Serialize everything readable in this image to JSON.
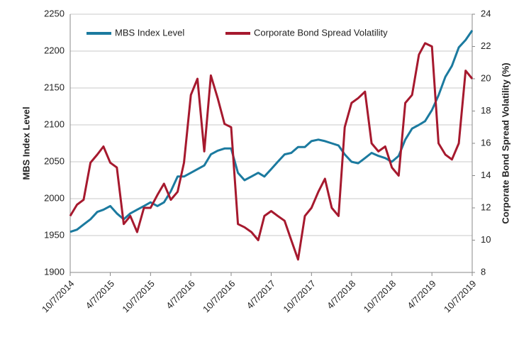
{
  "chart_data": {
    "type": "line",
    "y_label": "MBS Index Level",
    "y2_label": "Corporate Bond Spread Volatility (%)",
    "x": [
      "2014-10-07",
      "2014-11-07",
      "2014-12-07",
      "2015-01-07",
      "2015-02-07",
      "2015-03-07",
      "2015-04-07",
      "2015-05-07",
      "2015-06-07",
      "2015-07-07",
      "2015-08-07",
      "2015-09-07",
      "2015-10-07",
      "2015-11-07",
      "2015-12-07",
      "2016-01-07",
      "2016-02-07",
      "2016-03-07",
      "2016-04-07",
      "2016-05-07",
      "2016-06-07",
      "2016-07-07",
      "2016-08-07",
      "2016-09-07",
      "2016-10-07",
      "2016-11-07",
      "2016-12-07",
      "2017-01-07",
      "2017-02-07",
      "2017-03-07",
      "2017-04-07",
      "2017-05-07",
      "2017-06-07",
      "2017-07-07",
      "2017-08-07",
      "2017-09-07",
      "2017-10-07",
      "2017-11-07",
      "2017-12-07",
      "2018-01-07",
      "2018-02-07",
      "2018-03-07",
      "2018-04-07",
      "2018-05-07",
      "2018-06-07",
      "2018-07-07",
      "2018-08-07",
      "2018-09-07",
      "2018-10-07",
      "2018-11-07",
      "2018-12-07",
      "2019-01-07",
      "2019-02-07",
      "2019-03-07",
      "2019-04-07",
      "2019-05-07",
      "2019-06-07",
      "2019-07-07",
      "2019-08-07",
      "2019-09-07",
      "2019-10-07"
    ],
    "series": [
      {
        "name": "MBS Index Level",
        "color": "#1b7a9f",
        "axis": "y",
        "values": [
          1955,
          1958,
          1965,
          1972,
          1982,
          1985,
          1990,
          1980,
          1972,
          1980,
          1985,
          1990,
          1995,
          1990,
          1995,
          2010,
          2030,
          2030,
          2035,
          2040,
          2045,
          2060,
          2065,
          2068,
          2068,
          2035,
          2025,
          2030,
          2035,
          2030,
          2040,
          2050,
          2060,
          2062,
          2070,
          2070,
          2078,
          2080,
          2078,
          2075,
          2072,
          2060,
          2050,
          2048,
          2055,
          2062,
          2058,
          2055,
          2050,
          2058,
          2080,
          2095,
          2100,
          2105,
          2120,
          2140,
          2165,
          2180,
          2205,
          2215,
          2228
        ]
      },
      {
        "name": "Corporate Bond Spread Volatility",
        "color": "#a6192e",
        "axis": "y2",
        "values": [
          11.5,
          12.2,
          12.5,
          14.8,
          15.3,
          15.8,
          14.8,
          14.5,
          11.0,
          11.5,
          10.5,
          12.0,
          12.0,
          12.8,
          13.5,
          12.5,
          13.0,
          14.8,
          19.0,
          20.0,
          15.5,
          20.2,
          18.8,
          17.2,
          17.0,
          11.0,
          10.8,
          10.5,
          10.0,
          11.5,
          11.8,
          11.5,
          11.2,
          10.0,
          8.8,
          11.5,
          12.0,
          13.0,
          13.8,
          12.0,
          11.5,
          17.0,
          18.5,
          18.8,
          19.2,
          16.0,
          15.5,
          15.8,
          14.5,
          14.0,
          18.5,
          19.0,
          21.5,
          22.2,
          22.0,
          16.0,
          15.3,
          15.0,
          16.0,
          20.5,
          20.0
        ]
      }
    ],
    "xlim": [
      "2014-10-07",
      "2019-10-07"
    ],
    "xticks": [
      {
        "value": "2014-10-07",
        "label": "10/7/2014"
      },
      {
        "value": "2015-04-07",
        "label": "4/7/2015"
      },
      {
        "value": "2015-10-07",
        "label": "10/7/2015"
      },
      {
        "value": "2016-04-07",
        "label": "4/7/2016"
      },
      {
        "value": "2016-10-07",
        "label": "10/7/2016"
      },
      {
        "value": "2017-04-07",
        "label": "4/7/2017"
      },
      {
        "value": "2017-10-07",
        "label": "10/7/2017"
      },
      {
        "value": "2018-04-07",
        "label": "4/7/2018"
      },
      {
        "value": "2018-10-07",
        "label": "10/7/2018"
      },
      {
        "value": "2019-04-07",
        "label": "4/7/2019"
      },
      {
        "value": "2019-10-07",
        "label": "10/7/2019"
      }
    ],
    "ylim": [
      1900,
      2250
    ],
    "yticks": [
      1900,
      1950,
      2000,
      2050,
      2100,
      2150,
      2200,
      2250
    ],
    "y2lim": [
      8,
      24
    ],
    "y2ticks": [
      8,
      10,
      12,
      14,
      16,
      18,
      20,
      22,
      24
    ],
    "grid": true,
    "legend": "top-left"
  }
}
